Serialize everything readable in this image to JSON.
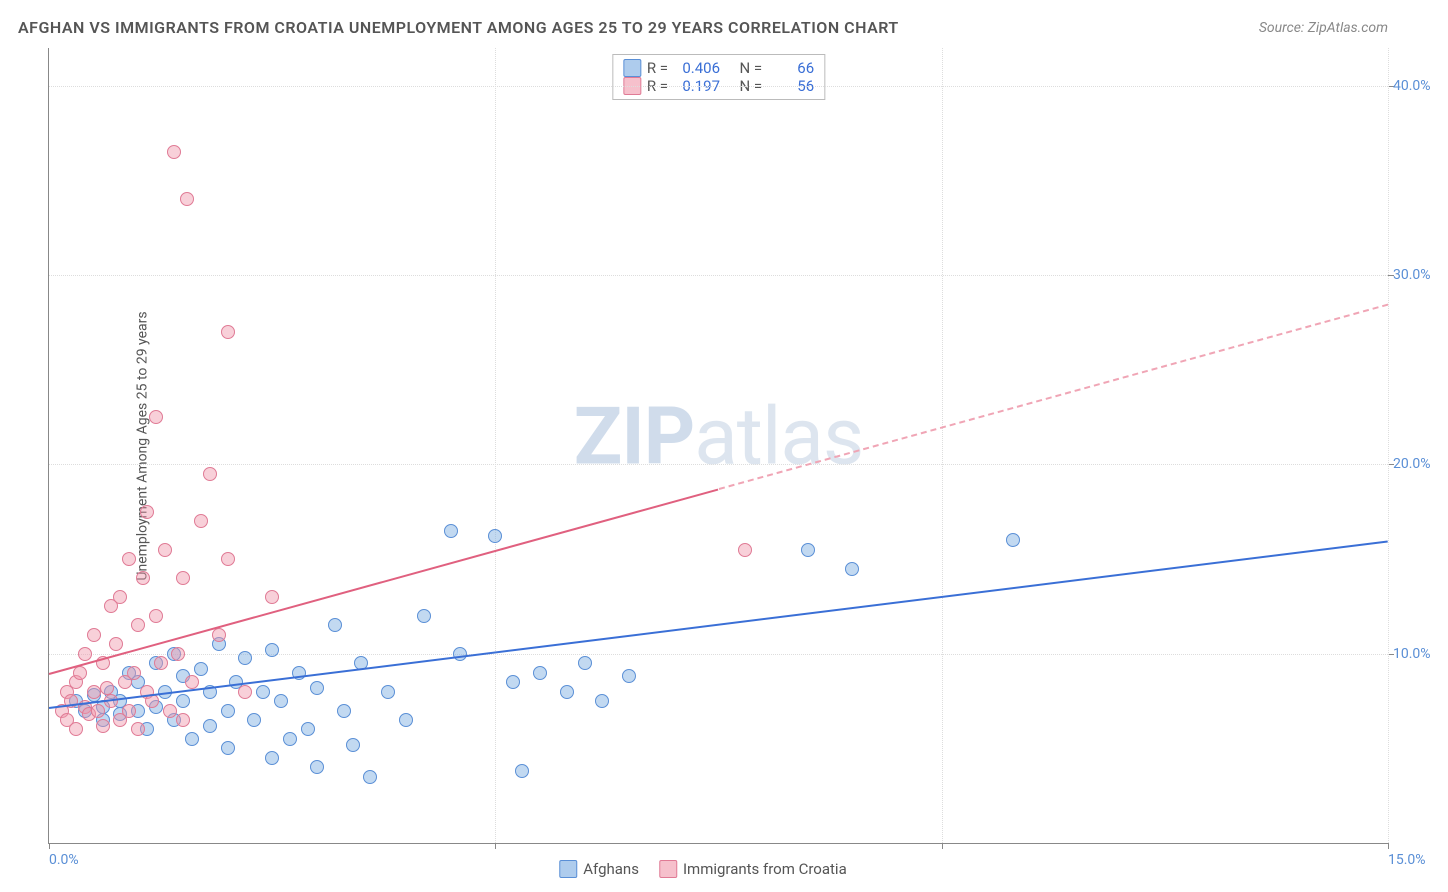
{
  "title": "AFGHAN VS IMMIGRANTS FROM CROATIA UNEMPLOYMENT AMONG AGES 25 TO 29 YEARS CORRELATION CHART",
  "source": "Source: ZipAtlas.com",
  "y_label": "Unemployment Among Ages 25 to 29 years",
  "watermark_bold": "ZIP",
  "watermark_light": "atlas",
  "chart": {
    "type": "scatter",
    "xlim": [
      0,
      15
    ],
    "ylim": [
      0,
      42
    ],
    "x_ticks": [
      0,
      5,
      10,
      15
    ],
    "x_tick_labels": [
      "0.0%",
      "",
      "",
      "15.0%"
    ],
    "y_ticks": [
      10,
      20,
      30,
      40
    ],
    "y_tick_labels": [
      "10.0%",
      "20.0%",
      "30.0%",
      "40.0%"
    ],
    "grid_color": "#dddddd",
    "axis_color": "#888888",
    "background_color": "#ffffff",
    "series": [
      {
        "name": "Afghans",
        "color_fill": "rgba(120,170,225,0.45)",
        "color_stroke": "#5a8fd6",
        "R": "0.406",
        "N": "66",
        "trend": {
          "x1": 0,
          "y1": 7.2,
          "x2": 15,
          "y2": 16.0,
          "color": "#3a6fd6",
          "dash_from_x": null
        },
        "points": [
          [
            0.3,
            7.5
          ],
          [
            0.4,
            7.0
          ],
          [
            0.5,
            7.8
          ],
          [
            0.6,
            7.2
          ],
          [
            0.6,
            6.5
          ],
          [
            0.7,
            8.0
          ],
          [
            0.8,
            7.5
          ],
          [
            0.8,
            6.8
          ],
          [
            0.9,
            9.0
          ],
          [
            1.0,
            7.0
          ],
          [
            1.0,
            8.5
          ],
          [
            1.1,
            6.0
          ],
          [
            1.2,
            9.5
          ],
          [
            1.2,
            7.2
          ],
          [
            1.3,
            8.0
          ],
          [
            1.4,
            10.0
          ],
          [
            1.4,
            6.5
          ],
          [
            1.5,
            8.8
          ],
          [
            1.5,
            7.5
          ],
          [
            1.6,
            5.5
          ],
          [
            1.7,
            9.2
          ],
          [
            1.8,
            8.0
          ],
          [
            1.8,
            6.2
          ],
          [
            1.9,
            10.5
          ],
          [
            2.0,
            7.0
          ],
          [
            2.0,
            5.0
          ],
          [
            2.1,
            8.5
          ],
          [
            2.2,
            9.8
          ],
          [
            2.3,
            6.5
          ],
          [
            2.4,
            8.0
          ],
          [
            2.5,
            4.5
          ],
          [
            2.5,
            10.2
          ],
          [
            2.6,
            7.5
          ],
          [
            2.7,
            5.5
          ],
          [
            2.8,
            9.0
          ],
          [
            2.9,
            6.0
          ],
          [
            3.0,
            8.2
          ],
          [
            3.0,
            4.0
          ],
          [
            3.2,
            11.5
          ],
          [
            3.3,
            7.0
          ],
          [
            3.4,
            5.2
          ],
          [
            3.5,
            9.5
          ],
          [
            3.6,
            3.5
          ],
          [
            3.8,
            8.0
          ],
          [
            4.0,
            6.5
          ],
          [
            4.2,
            12.0
          ],
          [
            4.5,
            16.5
          ],
          [
            4.6,
            10.0
          ],
          [
            5.0,
            16.2
          ],
          [
            5.2,
            8.5
          ],
          [
            5.3,
            3.8
          ],
          [
            5.5,
            9.0
          ],
          [
            5.8,
            8.0
          ],
          [
            6.0,
            9.5
          ],
          [
            6.2,
            7.5
          ],
          [
            6.5,
            8.8
          ],
          [
            8.5,
            15.5
          ],
          [
            9.0,
            14.5
          ],
          [
            10.8,
            16.0
          ]
        ]
      },
      {
        "name": "Immigrants from Croatia",
        "color_fill": "rgba(240,150,170,0.45)",
        "color_stroke": "#e07a95",
        "R": "0.197",
        "N": "56",
        "trend": {
          "x1": 0,
          "y1": 9.0,
          "x2": 15,
          "y2": 28.5,
          "color": "#e0607f",
          "dash_from_x": 7.5
        },
        "points": [
          [
            0.15,
            7.0
          ],
          [
            0.2,
            8.0
          ],
          [
            0.2,
            6.5
          ],
          [
            0.25,
            7.5
          ],
          [
            0.3,
            8.5
          ],
          [
            0.3,
            6.0
          ],
          [
            0.35,
            9.0
          ],
          [
            0.4,
            7.2
          ],
          [
            0.4,
            10.0
          ],
          [
            0.45,
            6.8
          ],
          [
            0.5,
            8.0
          ],
          [
            0.5,
            11.0
          ],
          [
            0.55,
            7.0
          ],
          [
            0.6,
            9.5
          ],
          [
            0.6,
            6.2
          ],
          [
            0.65,
            8.2
          ],
          [
            0.7,
            12.5
          ],
          [
            0.7,
            7.5
          ],
          [
            0.75,
            10.5
          ],
          [
            0.8,
            6.5
          ],
          [
            0.8,
            13.0
          ],
          [
            0.85,
            8.5
          ],
          [
            0.9,
            7.0
          ],
          [
            0.9,
            15.0
          ],
          [
            0.95,
            9.0
          ],
          [
            1.0,
            11.5
          ],
          [
            1.0,
            6.0
          ],
          [
            1.05,
            14.0
          ],
          [
            1.1,
            8.0
          ],
          [
            1.1,
            17.5
          ],
          [
            1.15,
            7.5
          ],
          [
            1.2,
            12.0
          ],
          [
            1.2,
            22.5
          ],
          [
            1.25,
            9.5
          ],
          [
            1.3,
            15.5
          ],
          [
            1.35,
            7.0
          ],
          [
            1.4,
            36.5
          ],
          [
            1.45,
            10.0
          ],
          [
            1.5,
            14.0
          ],
          [
            1.5,
            6.5
          ],
          [
            1.55,
            34.0
          ],
          [
            1.6,
            8.5
          ],
          [
            1.7,
            17.0
          ],
          [
            1.8,
            19.5
          ],
          [
            1.9,
            11.0
          ],
          [
            2.0,
            15.0
          ],
          [
            2.0,
            27.0
          ],
          [
            2.2,
            8.0
          ],
          [
            2.5,
            13.0
          ],
          [
            7.8,
            15.5
          ]
        ]
      }
    ]
  },
  "legend_top": {
    "rows": [
      {
        "swatch": "blue",
        "r_label": "R =",
        "r_val": "0.406",
        "n_label": "N =",
        "n_val": "66"
      },
      {
        "swatch": "pink",
        "r_label": "R =",
        "r_val": "0.197",
        "n_label": "N =",
        "n_val": "56"
      }
    ]
  },
  "legend_bottom": {
    "items": [
      {
        "swatch": "blue",
        "label": "Afghans"
      },
      {
        "swatch": "pink",
        "label": "Immigrants from Croatia"
      }
    ]
  }
}
